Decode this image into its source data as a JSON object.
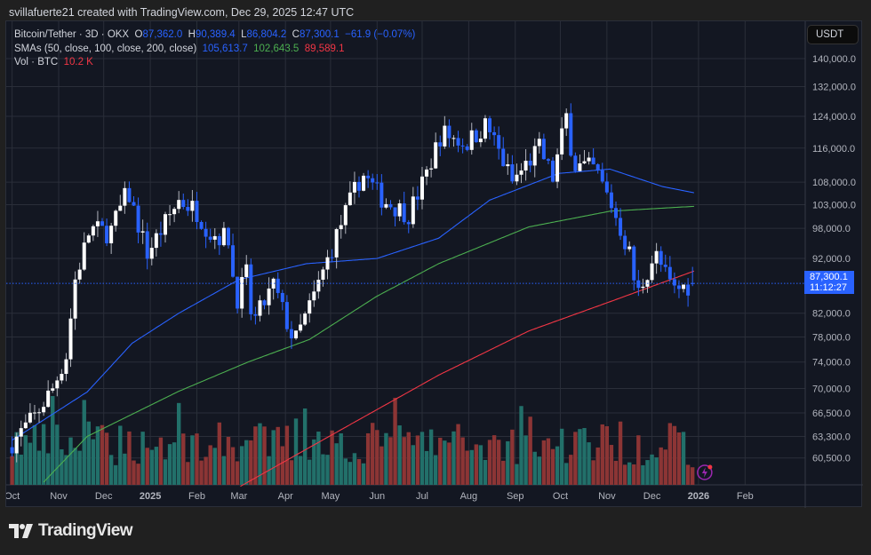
{
  "header": {
    "attribution": "svillafuerte21 created with TradingView.com, Dec 29, 2025 12:47 UTC"
  },
  "legend": {
    "symbol": "Bitcoin/Tether · 3D · OKX",
    "o_label": "O",
    "open": "87,362.0",
    "h_label": "H",
    "high": "90,389.4",
    "l_label": "L",
    "low": "86,804.2",
    "c_label": "C",
    "close": "87,300.1",
    "change": "−61.9 (−0.07%)",
    "sma_label": "SMAs (50, close, 100, close, 200, close)",
    "sma50": "105,613.7",
    "sma100": "102,643.5",
    "sma200": "89,589.1",
    "vol_label": "Vol · BTC",
    "vol": "10.2 K"
  },
  "price_axis": {
    "currency": "USDT",
    "last_price": "87,300.1",
    "countdown": "11:12:27"
  },
  "footer": {
    "logo": "TradingView"
  },
  "colors": {
    "up": "#ffffff",
    "down": "#2962ff",
    "vol_up": "#22706a",
    "vol_down": "#8c3535",
    "sma50": "#2962ff",
    "sma100": "#4caf50",
    "sma200": "#f23645",
    "bg": "#131722",
    "grid": "#2a2e39"
  },
  "chart_data": {
    "type": "candlestick",
    "scale": "log",
    "ylim": [
      60500,
      142000
    ],
    "y_ticks": [
      "140,000.0",
      "132,000.0",
      "124,000.0",
      "116,000.0",
      "108,000.0",
      "103,000.0",
      "98,000.0",
      "92,000.0",
      "82,000.0",
      "78,000.0",
      "74,000.0",
      "70,000.0",
      "66,500.0",
      "63,300.0",
      "60,500.0"
    ],
    "y_tick_values": [
      140000,
      132000,
      124000,
      116000,
      108000,
      103000,
      98000,
      92000,
      82000,
      78000,
      74000,
      70000,
      66500,
      63300,
      60500
    ],
    "x_ticks": [
      {
        "label": "Oct",
        "date": "2024-10-01"
      },
      {
        "label": "Nov",
        "date": "2024-11-01"
      },
      {
        "label": "Dec",
        "date": "2024-12-01"
      },
      {
        "label": "2025",
        "date": "2025-01-01",
        "bold": true
      },
      {
        "label": "Feb",
        "date": "2025-02-01"
      },
      {
        "label": "Mar",
        "date": "2025-03-01"
      },
      {
        "label": "Apr",
        "date": "2025-04-01"
      },
      {
        "label": "May",
        "date": "2025-05-01"
      },
      {
        "label": "Jun",
        "date": "2025-06-01"
      },
      {
        "label": "Jul",
        "date": "2025-07-01"
      },
      {
        "label": "Aug",
        "date": "2025-08-01"
      },
      {
        "label": "Sep",
        "date": "2025-09-01"
      },
      {
        "label": "Oct",
        "date": "2025-10-01"
      },
      {
        "label": "Nov",
        "date": "2025-11-01"
      },
      {
        "label": "Dec",
        "date": "2025-12-01"
      },
      {
        "label": "2026",
        "date": "2026-01-01",
        "bold": true
      },
      {
        "label": "Feb",
        "date": "2026-02-01"
      }
    ],
    "bar_interval_days": 3,
    "close_path": [
      [
        "2024-10-01",
        62500
      ],
      [
        "2024-10-16",
        66000
      ],
      [
        "2024-10-28",
        70000
      ],
      [
        "2024-11-06",
        75000
      ],
      [
        "2024-11-12",
        88000
      ],
      [
        "2024-11-22",
        98000
      ],
      [
        "2024-12-05",
        97000
      ],
      [
        "2024-12-17",
        106000
      ],
      [
        "2024-12-30",
        93000
      ],
      [
        "2025-01-07",
        97000
      ],
      [
        "2025-01-20",
        104000
      ],
      [
        "2025-01-31",
        102000
      ],
      [
        "2025-02-10",
        97000
      ],
      [
        "2025-02-22",
        96000
      ],
      [
        "2025-02-27",
        84000
      ],
      [
        "2025-03-06",
        89000
      ],
      [
        "2025-03-10",
        80000
      ],
      [
        "2025-03-24",
        87000
      ],
      [
        "2025-04-07",
        77000
      ],
      [
        "2025-04-20",
        85000
      ],
      [
        "2025-05-08",
        99000
      ],
      [
        "2025-05-22",
        110000
      ],
      [
        "2025-06-05",
        104000
      ],
      [
        "2025-06-22",
        101000
      ],
      [
        "2025-07-03",
        109000
      ],
      [
        "2025-07-14",
        120000
      ],
      [
        "2025-07-30",
        117000
      ],
      [
        "2025-08-13",
        122000
      ],
      [
        "2025-08-30",
        108000
      ],
      [
        "2025-09-17",
        116000
      ],
      [
        "2025-09-26",
        109000
      ],
      [
        "2025-10-05",
        124000
      ],
      [
        "2025-10-10",
        112000
      ],
      [
        "2025-10-24",
        111000
      ],
      [
        "2025-11-04",
        103000
      ],
      [
        "2025-11-16",
        93000
      ],
      [
        "2025-11-21",
        85000
      ],
      [
        "2025-12-03",
        93000
      ],
      [
        "2025-12-15",
        86000
      ],
      [
        "2025-12-29",
        87300
      ]
    ],
    "last_bar": {
      "date": "2025-12-29",
      "open": 87362.0,
      "high": 90389.4,
      "low": 86804.2,
      "close": 87300.1,
      "volume": 10200
    },
    "sma50_path": [
      [
        "2024-10-01",
        62800
      ],
      [
        "2024-11-20",
        69500
      ],
      [
        "2024-12-20",
        77000
      ],
      [
        "2025-01-20",
        82000
      ],
      [
        "2025-03-01",
        88000
      ],
      [
        "2025-04-15",
        91000
      ],
      [
        "2025-06-01",
        92000
      ],
      [
        "2025-07-12",
        96000
      ],
      [
        "2025-08-15",
        104000
      ],
      [
        "2025-09-30",
        110000
      ],
      [
        "2025-11-03",
        111000
      ],
      [
        "2025-12-08",
        107000
      ],
      [
        "2025-12-29",
        105613.7
      ]
    ],
    "sma100_path": [
      [
        "2024-10-22",
        57500
      ],
      [
        "2024-11-20",
        63300
      ],
      [
        "2025-01-20",
        69600
      ],
      [
        "2025-03-07",
        74000
      ],
      [
        "2025-04-17",
        77600
      ],
      [
        "2025-06-01",
        85000
      ],
      [
        "2025-07-12",
        91000
      ],
      [
        "2025-09-10",
        98300
      ],
      [
        "2025-11-03",
        101600
      ],
      [
        "2025-12-29",
        102643.5
      ]
    ],
    "sma200_path": [
      [
        "2025-03-02",
        57000
      ],
      [
        "2025-05-15",
        65000
      ],
      [
        "2025-07-12",
        72000
      ],
      [
        "2025-09-10",
        79000
      ],
      [
        "2025-11-03",
        84000
      ],
      [
        "2025-12-29",
        89589.1
      ]
    ]
  }
}
